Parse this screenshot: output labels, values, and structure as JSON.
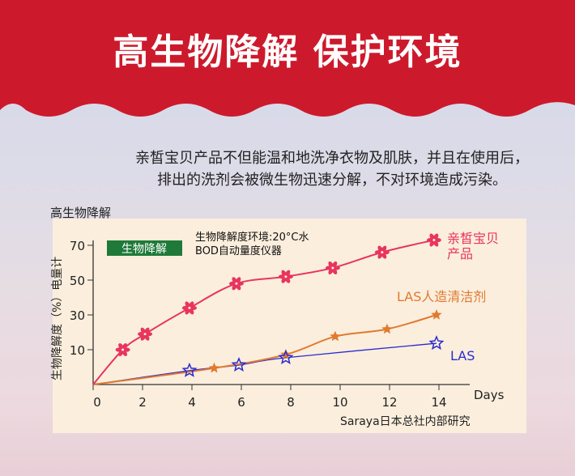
{
  "header": {
    "title": "高生物降解 保护环境"
  },
  "description": [
    "亲皙宝贝产品不但能温和地洗净衣物及肌肤，并且在使用后，",
    "排出的洗剂会被微生物迅速分解，不对环境造成污染。"
  ],
  "section_title": "高生物降解",
  "colors": {
    "banner": "#cc1a2c",
    "red_series": "#e8355f",
    "orange_series": "#e07a30",
    "blue_series": "#2a2ad0",
    "badge": "#1f7a3a"
  },
  "chart_data": {
    "type": "line",
    "badge": "生物降解",
    "note": [
      "生物降解度环境:20°C水",
      "BOD自动量度仪器"
    ],
    "ylabel": "生物降解度（%）电量计",
    "xlabel": "Days",
    "source": "Saraya日本总社内部研究",
    "x_ticks": [
      0,
      2,
      4,
      6,
      8,
      10,
      12,
      14
    ],
    "y_ticks": [
      10,
      30,
      50,
      70
    ],
    "xlim": [
      0,
      15
    ],
    "ylim": [
      0,
      75
    ],
    "series": [
      {
        "name": "亲皙宝贝产品",
        "label_lines": [
          "亲皙宝贝",
          "产品"
        ],
        "color": "#e8355f",
        "marker": "flower",
        "points": [
          [
            0,
            0
          ],
          [
            1.2,
            10
          ],
          [
            2.1,
            19
          ],
          [
            3.9,
            34
          ],
          [
            5.8,
            48
          ],
          [
            7.8,
            52
          ],
          [
            9.7,
            57
          ],
          [
            11.7,
            66
          ],
          [
            13.8,
            73
          ]
        ]
      },
      {
        "name": "LAS人造清洁剂",
        "label_lines": [
          "LAS人造清洁剂"
        ],
        "color": "#e07a30",
        "marker": "star-filled",
        "points": [
          [
            0,
            0
          ],
          [
            4.9,
            4.7
          ],
          [
            7.8,
            8.6
          ],
          [
            9.8,
            17.6
          ],
          [
            11.9,
            21.8
          ],
          [
            13.9,
            30
          ]
        ]
      },
      {
        "name": "LAS",
        "label_lines": [
          "LAS"
        ],
        "color": "#2a2ad0",
        "marker": "star-open",
        "points": [
          [
            0,
            0
          ],
          [
            3.9,
            4
          ],
          [
            5.9,
            5.6
          ],
          [
            7.8,
            7.7
          ],
          [
            13.9,
            13.7
          ]
        ]
      }
    ]
  }
}
